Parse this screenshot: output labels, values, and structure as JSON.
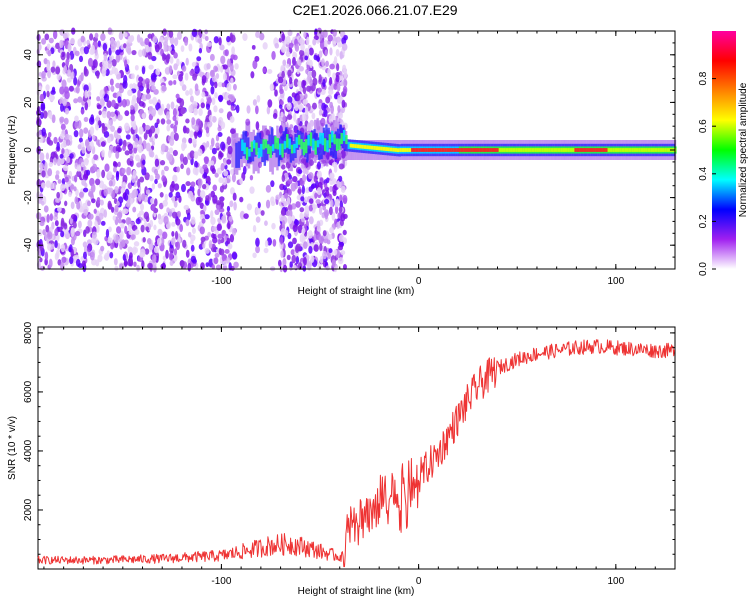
{
  "title": "C2E1.2026.066.21.07.E29",
  "chart_data": [
    {
      "type": "heatmap",
      "name": "spectrogram",
      "xlabel": "Height of straight line (km)",
      "ylabel": "Frequency (Hz)",
      "xlim": [
        -193,
        130
      ],
      "ylim": [
        -50,
        50
      ],
      "xticks": [
        -100,
        0,
        100
      ],
      "xtick_labels": [
        "-100",
        "0",
        "100"
      ],
      "yticks": [
        -40,
        -20,
        0,
        20,
        40
      ],
      "ytick_labels": [
        "-40",
        "-20",
        "0",
        "20",
        "40"
      ],
      "colorbar": {
        "label": "Normalized spectral amplitude",
        "range": [
          0,
          1
        ],
        "ticks": [
          0,
          0.2,
          0.4,
          0.6,
          0.8
        ],
        "tick_labels": [
          "0.0",
          "0.2",
          "0.4",
          "0.6",
          "0.8"
        ],
        "colormap": [
          "#ffffff",
          "#a020f0",
          "#0000ff",
          "#00ffff",
          "#00ff00",
          "#ffff00",
          "#ff8000",
          "#ff0000",
          "#ff00a0"
        ]
      },
      "regions": [
        {
          "description": "scattered noise",
          "x_range": [
            -193,
            -37
          ],
          "freq_range": [
            -50,
            50
          ],
          "amplitude": 0.12
        },
        {
          "description": "emerging carrier",
          "x_range": [
            -95,
            -37
          ],
          "freq_range": [
            -6,
            10
          ],
          "amplitude": 0.45
        },
        {
          "description": "stable carrier",
          "x_range": [
            -37,
            130
          ],
          "freq_range": [
            -3,
            3
          ],
          "amplitude": 0.95
        }
      ]
    },
    {
      "type": "line",
      "name": "snr",
      "xlabel": "Height of straight line (km)",
      "ylabel": "SNR (10 * v/v)",
      "xlim": [
        -193,
        130
      ],
      "ylim": [
        0,
        8200
      ],
      "xticks": [
        -100,
        0,
        100
      ],
      "xtick_labels": [
        "-100",
        "0",
        "100"
      ],
      "yticks": [
        2000,
        4000,
        6000,
        8000
      ],
      "ytick_labels": [
        "2000",
        "4000",
        "6000",
        "8000"
      ],
      "series": [
        {
          "name": "SNR",
          "color": "#ee3333",
          "x": [
            -193,
            -160,
            -130,
            -100,
            -85,
            -75,
            -65,
            -55,
            -45,
            -38,
            -35,
            -30,
            -25,
            -20,
            -15,
            -10,
            -5,
            0,
            5,
            10,
            15,
            20,
            25,
            30,
            35,
            40,
            45,
            50,
            60,
            70,
            80,
            90,
            100,
            110,
            120,
            130
          ],
          "y": [
            300,
            300,
            350,
            450,
            650,
            800,
            850,
            700,
            500,
            400,
            1500,
            1700,
            2000,
            2300,
            2400,
            2600,
            2800,
            3100,
            3500,
            3900,
            4500,
            5100,
            5700,
            6200,
            6500,
            6800,
            6950,
            7100,
            7300,
            7400,
            7500,
            7550,
            7500,
            7450,
            7400,
            7400
          ]
        }
      ]
    }
  ]
}
